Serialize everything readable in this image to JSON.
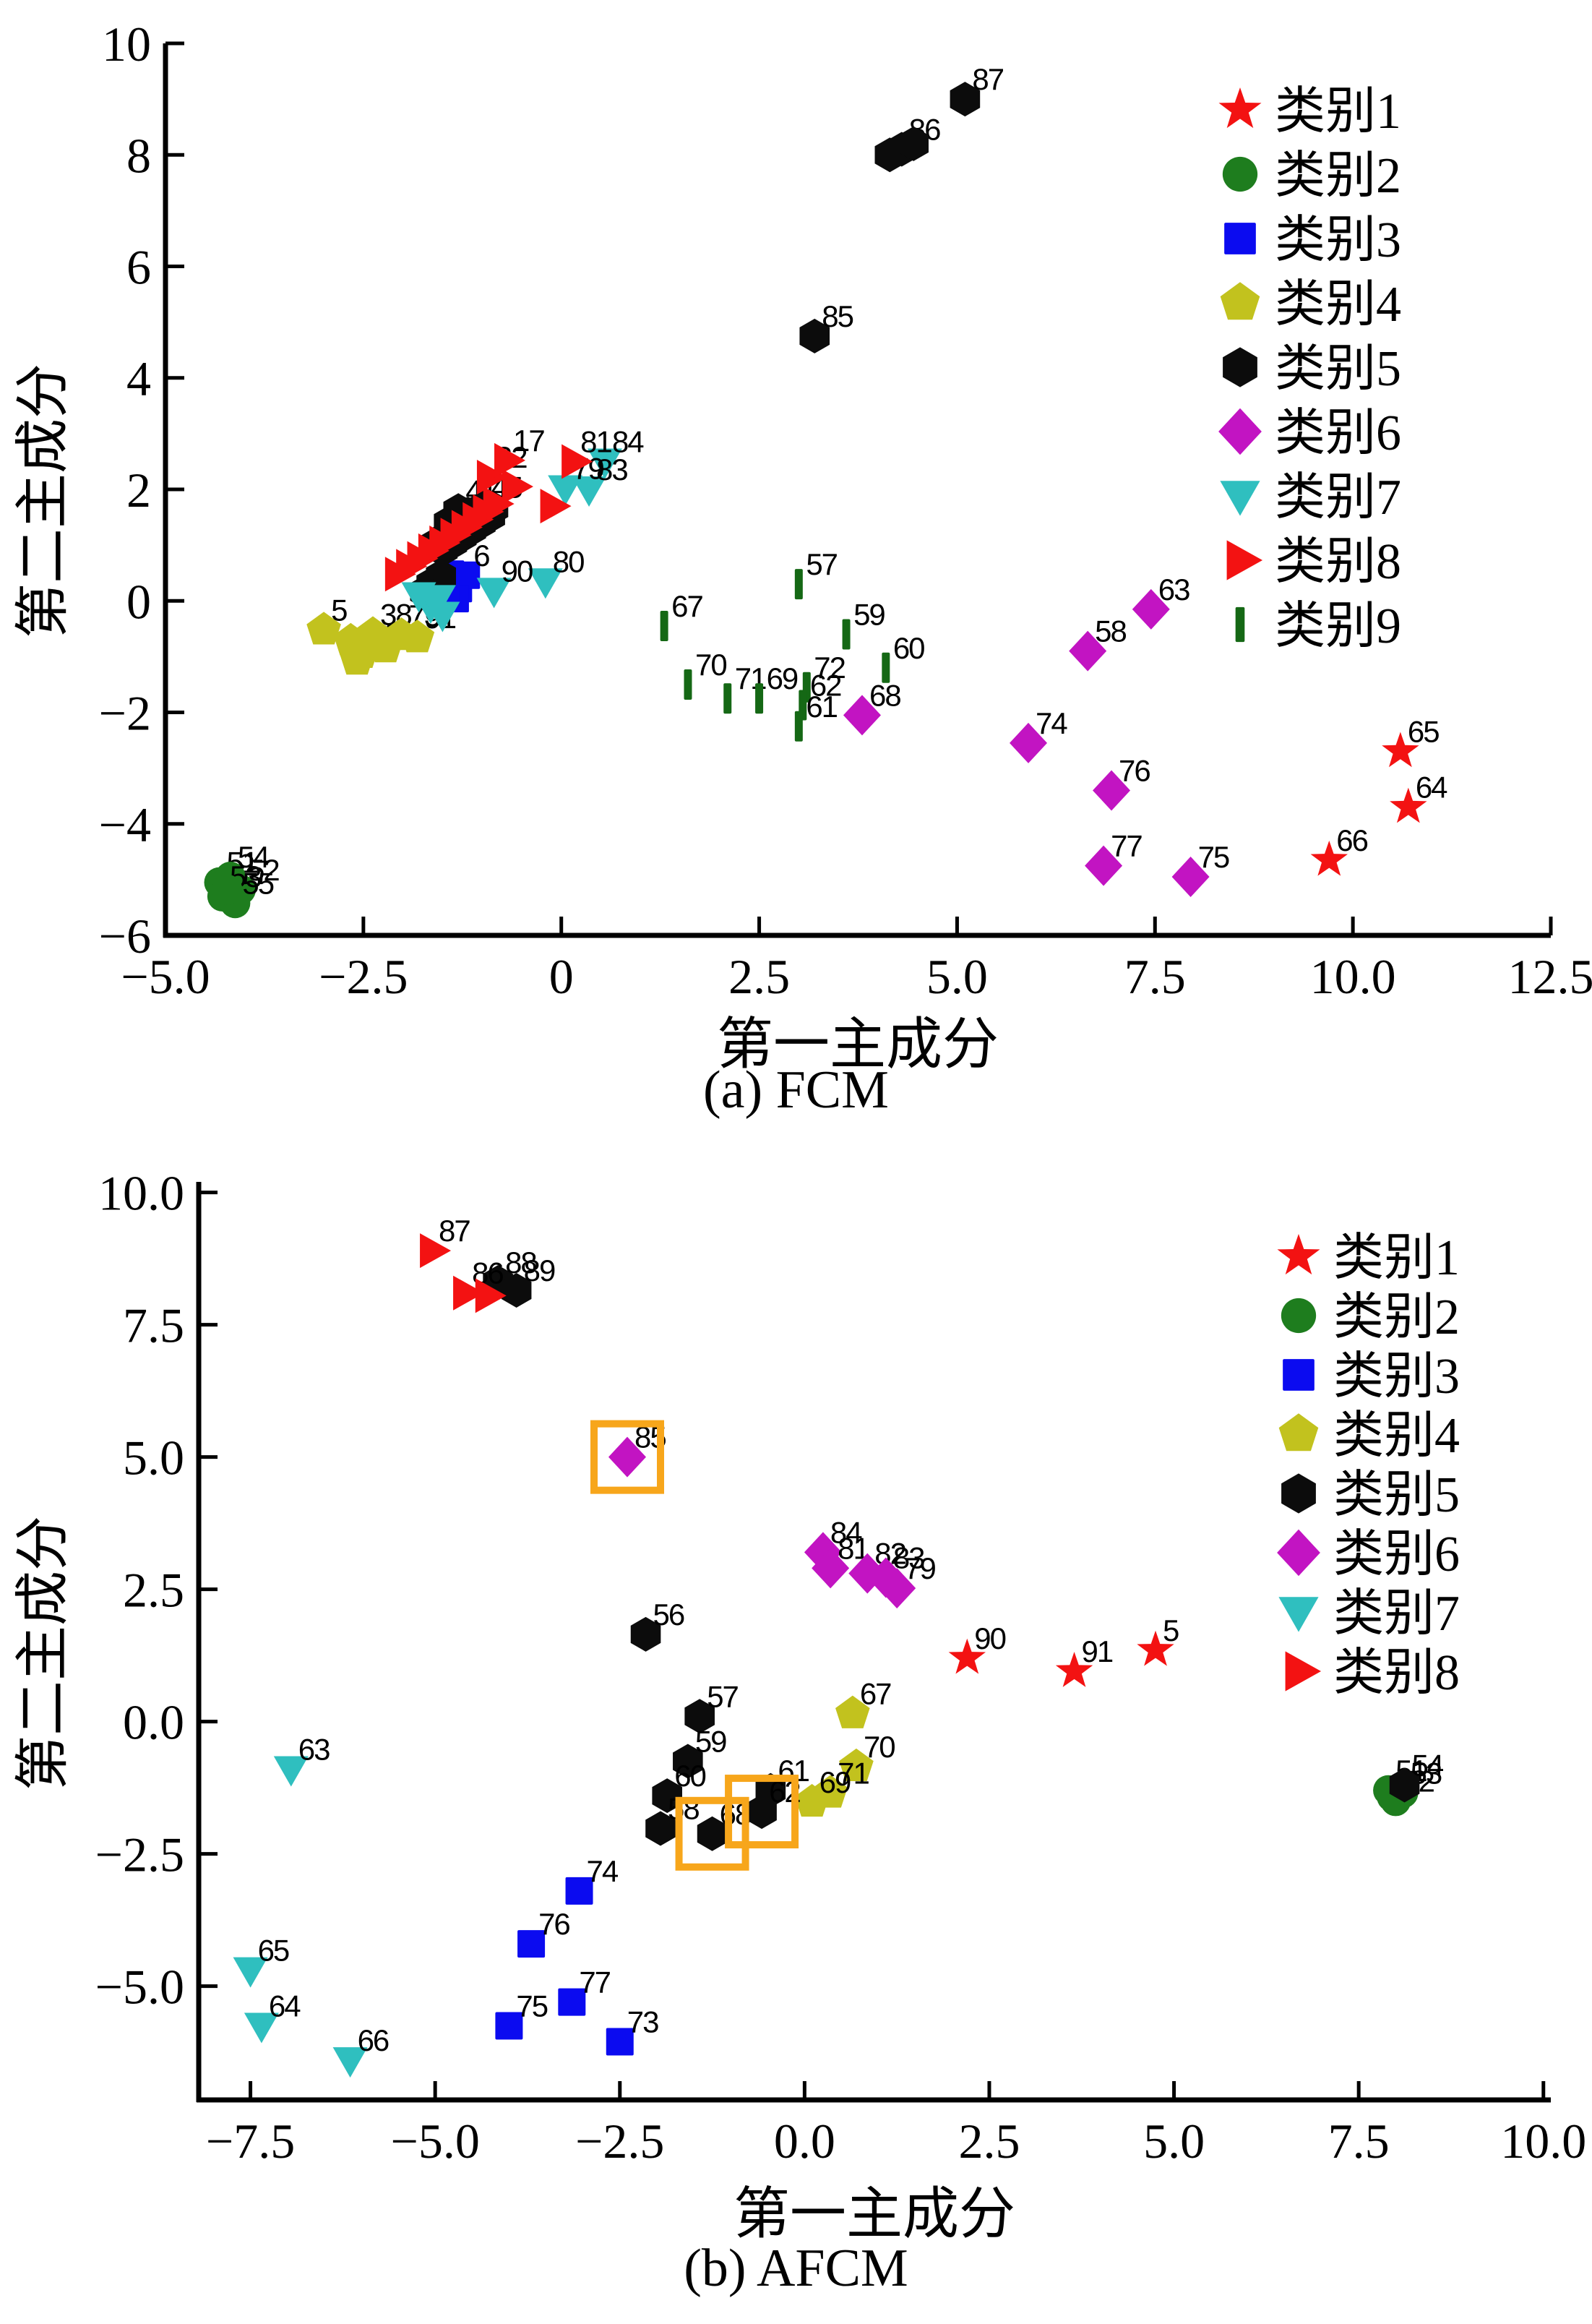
{
  "colors": {
    "class1_red": "#f31212",
    "class2_green": "#1e7d1e",
    "class3_blue": "#0b0bf0",
    "class4_olive": "#c2c21e",
    "class5_black": "#0c0c0c",
    "class6_magenta": "#c214c2",
    "class7_cyan": "#2fbfbf",
    "class8_red": "#f31212",
    "class9_darkgreen": "#156815",
    "highlight_orange": "#f7a61b"
  },
  "chart_data": [
    {
      "id": "fcm",
      "type": "scatter",
      "caption": "(a) FCM",
      "xlabel": "第一主成分",
      "ylabel": "第二主成分",
      "xlim": [
        -5,
        12.5
      ],
      "ylim": [
        -6,
        10
      ],
      "grid": false,
      "legend_position": "upper right",
      "xticks": [
        {
          "v": -5,
          "t": "−5.0"
        },
        {
          "v": -2.5,
          "t": "−2.5"
        },
        {
          "v": 0,
          "t": "0"
        },
        {
          "v": 2.5,
          "t": "2.5"
        },
        {
          "v": 5,
          "t": "5.0"
        },
        {
          "v": 7.5,
          "t": "7.5"
        },
        {
          "v": 10,
          "t": "10.0"
        },
        {
          "v": 12.5,
          "t": "12.5"
        }
      ],
      "yticks": [
        {
          "v": 10,
          "t": "10"
        },
        {
          "v": 8,
          "t": "8"
        },
        {
          "v": 6,
          "t": "6"
        },
        {
          "v": 4,
          "t": "4"
        },
        {
          "v": 2,
          "t": "2"
        },
        {
          "v": 0,
          "t": "0"
        },
        {
          "v": -2,
          "t": "−2"
        },
        {
          "v": -4,
          "t": "−4"
        },
        {
          "v": -6,
          "t": "−6"
        }
      ],
      "legend": [
        {
          "label": "类别1",
          "marker": "star",
          "color": "#f31212"
        },
        {
          "label": "类别2",
          "marker": "circle",
          "color": "#1e7d1e"
        },
        {
          "label": "类别3",
          "marker": "square",
          "color": "#0b0bf0"
        },
        {
          "label": "类别4",
          "marker": "pentagon",
          "color": "#c2c21e"
        },
        {
          "label": "类别5",
          "marker": "hexagon",
          "color": "#0c0c0c"
        },
        {
          "label": "类别6",
          "marker": "diamond",
          "color": "#c214c2"
        },
        {
          "label": "类别7",
          "marker": "triangle_down",
          "color": "#2fbfbf"
        },
        {
          "label": "类别8",
          "marker": "triangle_right",
          "color": "#f31212"
        },
        {
          "label": "类别9",
          "marker": "vbar",
          "color": "#156815"
        }
      ],
      "series": [
        {
          "name": "类别1",
          "marker": "star",
          "color": "#f31212",
          "points": [
            [
              10.6,
              -2.7,
              "65"
            ],
            [
              10.7,
              -3.7,
              "64"
            ],
            [
              9.7,
              -4.65,
              "66"
            ]
          ]
        },
        {
          "name": "类别2",
          "marker": "circle",
          "color": "#1e7d1e",
          "points": [
            [
              -4.32,
              -5.05,
              "51"
            ],
            [
              -4.18,
              -4.95,
              "54"
            ],
            [
              -4.05,
              -5.18,
              "52"
            ],
            [
              -4.28,
              -5.3,
              "53"
            ],
            [
              -4.12,
              -5.42,
              "55"
            ],
            [
              -4.22,
              -5.18,
              ""
            ]
          ]
        },
        {
          "name": "类别3",
          "marker": "square",
          "color": "#0b0bf0",
          "points": [
            [
              -1.52,
              0.34,
              ""
            ],
            [
              -1.4,
              0.48,
              ""
            ],
            [
              -1.3,
              0.22,
              ""
            ],
            [
              -1.2,
              0.46,
              "6"
            ],
            [
              -1.34,
              0.04,
              ""
            ],
            [
              -1.46,
              0.14,
              ""
            ]
          ]
        },
        {
          "name": "类别4",
          "marker": "pentagon",
          "color": "#c2c21e",
          "points": [
            [
              -3.0,
              -0.52,
              "5"
            ],
            [
              -2.66,
              -0.72,
              ""
            ],
            [
              -2.52,
              -0.94,
              "40"
            ],
            [
              -2.38,
              -0.6,
              "38"
            ],
            [
              -2.22,
              -0.84,
              ""
            ],
            [
              -2.02,
              -0.62,
              "73"
            ],
            [
              -1.82,
              -0.66,
              "91"
            ],
            [
              -2.58,
              -1.06,
              ""
            ]
          ]
        },
        {
          "name": "类别5",
          "marker": "hexagon",
          "color": "#0c0c0c",
          "points": [
            [
              5.1,
              9.0,
              "87"
            ],
            [
              4.3,
              8.1,
              "86"
            ],
            [
              4.15,
              8.0,
              ""
            ],
            [
              4.45,
              8.2,
              ""
            ],
            [
              3.2,
              4.75,
              "85"
            ],
            [
              -1.58,
              1.02,
              ""
            ],
            [
              -1.46,
              1.14,
              ""
            ],
            [
              -1.34,
              1.26,
              ""
            ],
            [
              -1.22,
              1.38,
              ""
            ],
            [
              -1.1,
              1.5,
              ""
            ],
            [
              -0.98,
              1.6,
              ""
            ],
            [
              -1.5,
              0.92,
              ""
            ],
            [
              -1.38,
              1.04,
              ""
            ],
            [
              -1.26,
              1.16,
              ""
            ],
            [
              -1.14,
              1.28,
              ""
            ],
            [
              -1.02,
              1.4,
              ""
            ],
            [
              -0.9,
              1.52,
              ""
            ],
            [
              -1.3,
              1.44,
              ""
            ],
            [
              -1.18,
              1.56,
              ""
            ],
            [
              -1.42,
              1.4,
              ""
            ],
            [
              -0.86,
              1.66,
              ""
            ],
            [
              -1.3,
              1.62,
              "41"
            ],
            [
              -0.98,
              1.68,
              "45"
            ],
            [
              -1.64,
              0.3,
              ""
            ],
            [
              -1.52,
              0.44,
              ""
            ],
            [
              -1.72,
              0.16,
              ""
            ]
          ]
        },
        {
          "name": "类别6",
          "marker": "diamond",
          "color": "#c214c2",
          "points": [
            [
              3.8,
              -2.05,
              "68"
            ],
            [
              6.65,
              -0.9,
              "58"
            ],
            [
              7.45,
              -0.15,
              "63"
            ],
            [
              5.9,
              -2.55,
              "74"
            ],
            [
              6.95,
              -3.4,
              "76"
            ],
            [
              6.85,
              -4.75,
              "77"
            ],
            [
              7.95,
              -4.95,
              "75"
            ]
          ]
        },
        {
          "name": "类别7",
          "marker": "triangle_down",
          "color": "#2fbfbf",
          "points": [
            [
              0.55,
              2.5,
              "84"
            ],
            [
              0.35,
              2.0,
              "83"
            ],
            [
              0.05,
              2.02,
              "79"
            ],
            [
              -0.2,
              0.35,
              "80"
            ],
            [
              -0.85,
              0.18,
              "90"
            ],
            [
              -1.8,
              0.1,
              ""
            ],
            [
              -1.65,
              -0.1,
              ""
            ],
            [
              -1.55,
              0.05,
              ""
            ],
            [
              -1.5,
              -0.25,
              ""
            ]
          ]
        },
        {
          "name": "类别8",
          "marker": "triangle_right",
          "color": "#f31212",
          "points": [
            [
              -2.08,
              0.48,
              ""
            ],
            [
              -1.94,
              0.62,
              ""
            ],
            [
              -1.8,
              0.76,
              ""
            ],
            [
              -1.66,
              0.9,
              ""
            ],
            [
              -1.52,
              1.04,
              ""
            ],
            [
              -1.38,
              1.18,
              ""
            ],
            [
              -1.24,
              1.32,
              ""
            ],
            [
              -1.1,
              1.46,
              ""
            ],
            [
              -0.97,
              1.6,
              ""
            ],
            [
              -0.84,
              1.74,
              ""
            ],
            [
              -0.6,
              2.05,
              ""
            ],
            [
              -0.92,
              2.22,
              "32"
            ],
            [
              -0.7,
              2.52,
              "17"
            ],
            [
              0.15,
              2.5,
              "81"
            ],
            [
              -0.12,
              1.7,
              ""
            ]
          ]
        },
        {
          "name": "类别9",
          "marker": "vbar",
          "color": "#156815",
          "points": [
            [
              3.0,
              0.3,
              "57"
            ],
            [
              1.3,
              -0.45,
              "67"
            ],
            [
              3.6,
              -0.6,
              "59"
            ],
            [
              4.1,
              -1.2,
              "60"
            ],
            [
              1.6,
              -1.5,
              "70"
            ],
            [
              2.1,
              -1.75,
              "71"
            ],
            [
              2.5,
              -1.75,
              "69"
            ],
            [
              3.1,
              -1.55,
              "72"
            ],
            [
              3.05,
              -1.87,
              "62"
            ],
            [
              3.0,
              -2.25,
              "61"
            ]
          ]
        }
      ],
      "highlights": []
    },
    {
      "id": "afcm",
      "type": "scatter",
      "caption": "(b) AFCM",
      "xlabel": "第一主成分",
      "ylabel": "第二主成分",
      "xlim": [
        -8.2,
        10.1
      ],
      "ylim": [
        -7.15,
        10.2
      ],
      "grid": false,
      "legend_position": "upper right",
      "xticks": [
        {
          "v": -7.5,
          "t": "−7.5"
        },
        {
          "v": -5,
          "t": "−5.0"
        },
        {
          "v": -2.5,
          "t": "−2.5"
        },
        {
          "v": 0,
          "t": "0.0"
        },
        {
          "v": 2.5,
          "t": "2.5"
        },
        {
          "v": 5,
          "t": "5.0"
        },
        {
          "v": 7.5,
          "t": "7.5"
        },
        {
          "v": 10,
          "t": "10.0"
        }
      ],
      "yticks": [
        {
          "v": 10,
          "t": "10.0"
        },
        {
          "v": 7.5,
          "t": "7.5"
        },
        {
          "v": 5,
          "t": "5.0"
        },
        {
          "v": 2.5,
          "t": "2.5"
        },
        {
          "v": 0,
          "t": "0.0"
        },
        {
          "v": -2.5,
          "t": "−2.5"
        },
        {
          "v": -5,
          "t": "−5.0"
        }
      ],
      "legend": [
        {
          "label": "类别1",
          "marker": "star",
          "color": "#f31212"
        },
        {
          "label": "类别2",
          "marker": "circle",
          "color": "#1e7d1e"
        },
        {
          "label": "类别3",
          "marker": "square",
          "color": "#0b0bf0"
        },
        {
          "label": "类别4",
          "marker": "pentagon",
          "color": "#c2c21e"
        },
        {
          "label": "类别5",
          "marker": "hexagon",
          "color": "#0c0c0c"
        },
        {
          "label": "类别6",
          "marker": "diamond",
          "color": "#c214c2"
        },
        {
          "label": "类别7",
          "marker": "triangle_down",
          "color": "#2fbfbf"
        },
        {
          "label": "类别8",
          "marker": "triangle_right",
          "color": "#f31212"
        }
      ],
      "series": [
        {
          "name": "类别1",
          "marker": "star",
          "color": "#f31212",
          "points": [
            [
              2.2,
              1.2,
              "90"
            ],
            [
              3.65,
              0.95,
              "91"
            ],
            [
              4.75,
              1.35,
              "5"
            ]
          ]
        },
        {
          "name": "类别2",
          "marker": "circle",
          "color": "#1e7d1e",
          "points": [
            [
              7.9,
              -1.3,
              "51"
            ],
            [
              8.0,
              -1.5,
              "52"
            ],
            [
              8.1,
              -1.35,
              "53"
            ],
            [
              7.95,
              -1.42,
              ""
            ]
          ]
        },
        {
          "name": "类别3",
          "marker": "square",
          "color": "#0b0bf0",
          "points": [
            [
              -3.05,
              -3.2,
              "74"
            ],
            [
              -3.7,
              -4.2,
              "76"
            ],
            [
              -3.15,
              -5.3,
              "77"
            ],
            [
              -4.0,
              -5.75,
              "75"
            ],
            [
              -2.5,
              -6.05,
              "73"
            ]
          ]
        },
        {
          "name": "类别4",
          "marker": "pentagon",
          "color": "#c2c21e",
          "points": [
            [
              0.65,
              0.15,
              "67"
            ],
            [
              0.7,
              -0.85,
              "70"
            ],
            [
              0.35,
              -1.35,
              "71"
            ],
            [
              0.1,
              -1.52,
              "69"
            ]
          ]
        },
        {
          "name": "类别5",
          "marker": "hexagon",
          "color": "#0c0c0c",
          "points": [
            [
              -4.15,
              8.3,
              "88"
            ],
            [
              -3.9,
              8.15,
              "89"
            ],
            [
              -2.15,
              1.65,
              "56"
            ],
            [
              -1.42,
              0.1,
              "57"
            ],
            [
              -1.58,
              -0.75,
              "59"
            ],
            [
              -1.86,
              -1.4,
              "60"
            ],
            [
              -1.95,
              -2.02,
              "58"
            ],
            [
              -1.25,
              -2.12,
              "68"
            ],
            [
              -0.46,
              -1.3,
              "61"
            ],
            [
              -0.58,
              -1.7,
              "62"
            ],
            [
              8.12,
              -1.2,
              "54"
            ]
          ]
        },
        {
          "name": "类别6",
          "marker": "diamond",
          "color": "#c214c2",
          "points": [
            [
              -2.4,
              5.0,
              "85"
            ],
            [
              0.25,
              3.2,
              "84"
            ],
            [
              0.35,
              2.9,
              "81"
            ],
            [
              0.85,
              2.8,
              "82"
            ],
            [
              1.1,
              2.72,
              "83"
            ],
            [
              1.25,
              2.52,
              "79"
            ]
          ]
        },
        {
          "name": "类别7",
          "marker": "triangle_down",
          "color": "#2fbfbf",
          "points": [
            [
              -6.95,
              -0.9,
              "63"
            ],
            [
              -7.5,
              -4.7,
              "65"
            ],
            [
              -7.35,
              -5.75,
              "64"
            ],
            [
              -6.15,
              -6.4,
              "66"
            ]
          ]
        },
        {
          "name": "类别8",
          "marker": "triangle_right",
          "color": "#f31212",
          "points": [
            [
              -5.05,
              8.9,
              "87"
            ],
            [
              -4.6,
              8.1,
              "86"
            ],
            [
              -4.3,
              8.05,
              ""
            ]
          ]
        }
      ],
      "highlights": [
        {
          "x": -2.4,
          "y": 5.0
        },
        {
          "x": -1.25,
          "y": -2.12
        },
        {
          "x": -0.58,
          "y": -1.7
        }
      ]
    }
  ]
}
